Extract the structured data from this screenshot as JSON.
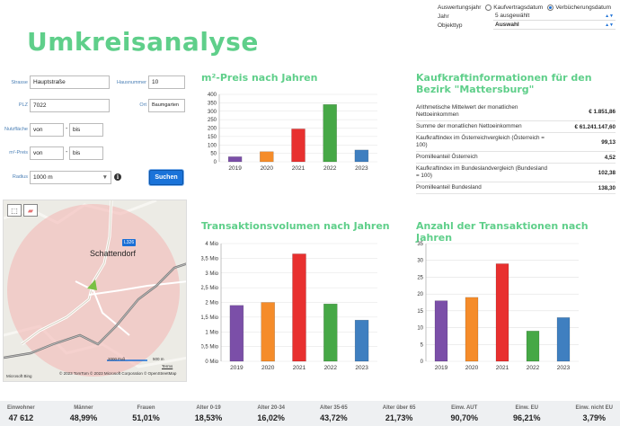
{
  "header": {
    "title": "Umkreisanalyse"
  },
  "top_controls": {
    "year_basis_label": "Auswertungsjahr",
    "option_contract": "Kaufvertragsdatum",
    "option_registration": "Verbücherungsdatum",
    "year_label": "Jahr",
    "year_value": "5 ausgewählt",
    "object_label": "Objekttyp",
    "object_value": "Auswahl"
  },
  "form": {
    "street_label": "Strasse",
    "street_value": "Hauptstraße",
    "housenumber_label": "Hausnummer",
    "housenumber_value": "10",
    "zip_label": "PLZ",
    "zip_value": "7022",
    "city_label": "Ort",
    "city_value": "Baumgarten",
    "area_label": "Nutzfläche",
    "area_from": "von",
    "area_to": "bis",
    "price_label": "m²-Preis",
    "price_from": "von",
    "price_to": "bis",
    "dash": "-",
    "radius_label": "Radius",
    "radius_value": "1000 m",
    "search_button": "Suchen",
    "info_glyph": "i"
  },
  "map": {
    "place_name": "Schattendorf",
    "road_badge": "L326",
    "scale_ft": "2000 Fuß",
    "scale_m": "500 m",
    "terms": "Terms",
    "copyright": "© 2023 TomTom  © 2023 Microsoft Corporation  © OpenStreetMap",
    "logo": "Microsoft Bing"
  },
  "sections": {
    "price_title": "m²-Preis nach Jahren",
    "kaufkraft_title": "Kaufkraftinformationen für den Bezirk \"Mattersburg\"",
    "volume_title": "Transaktionsvolumen nach Jahren",
    "count_title": "Anzahl der Transaktionen nach Jahren"
  },
  "kaufkraft": [
    {
      "label": "Arithmetische Mittelwert der monatlichen Nettoeinkommen",
      "value": "€ 1.851,86"
    },
    {
      "label": "Summe der monatlichen Nettoeinkommen",
      "value": "€ 61.241.147,60"
    },
    {
      "label": "Kaufkraftindex im Österreichvergleich (Österreich = 100)",
      "value": "99,13"
    },
    {
      "label": "Promilleanteil Österreich",
      "value": "4,52"
    },
    {
      "label": "Kaufkraftindex im Bundeslandvergleich (Bundesland = 100)",
      "value": "102,38"
    },
    {
      "label": "Promilleanteil Bundesland",
      "value": "138,30"
    }
  ],
  "stats": [
    {
      "label": "Einwohner",
      "value": "47 612"
    },
    {
      "label": "Männer",
      "value": "48,99%"
    },
    {
      "label": "Frauen",
      "value": "51,01%"
    },
    {
      "label": "Alter 0-19",
      "value": "18,53%"
    },
    {
      "label": "Alter 20-34",
      "value": "16,02%"
    },
    {
      "label": "Alter 35-65",
      "value": "43,72%"
    },
    {
      "label": "Alter über 65",
      "value": "21,73%"
    },
    {
      "label": "Einw. AUT",
      "value": "90,70%"
    },
    {
      "label": "Einw. EU",
      "value": "96,21%"
    },
    {
      "label": "Einw. nicht EU",
      "value": "3,79%"
    }
  ],
  "colors": {
    "accent": "#5fcf8a",
    "bar_2019": "#7b4fa8",
    "bar_2020": "#f58c2a",
    "bar_2021": "#e8302f",
    "bar_2022": "#46a846",
    "bar_2023": "#3f7fc0"
  },
  "chart_data": [
    {
      "type": "bar",
      "categories": [
        "2019",
        "2020",
        "2021",
        "2022",
        "2023"
      ],
      "values": [
        30,
        60,
        195,
        340,
        70
      ],
      "ylim": [
        0,
        400
      ],
      "yticks": [
        "0",
        "50",
        "100",
        "150",
        "200",
        "250",
        "300",
        "350",
        "400"
      ]
    },
    {
      "type": "bar",
      "categories": [
        "2019",
        "2020",
        "2021",
        "2022",
        "2023"
      ],
      "values": [
        1.9,
        2.0,
        3.65,
        1.95,
        1.4
      ],
      "ylim": [
        0,
        4
      ],
      "yticks": [
        "0 Mio",
        "0,5 Mio",
        "1 Mio",
        "1,5 Mio",
        "2 Mio",
        "2,5 Mio",
        "3 Mio",
        "3,5 Mio",
        "4 Mio"
      ]
    },
    {
      "type": "bar",
      "categories": [
        "2019",
        "2020",
        "2021",
        "2022",
        "2023"
      ],
      "values": [
        18,
        19,
        29,
        9,
        13
      ],
      "ylim": [
        0,
        35
      ],
      "yticks": [
        "0",
        "5",
        "10",
        "15",
        "20",
        "25",
        "30",
        "35"
      ]
    }
  ]
}
